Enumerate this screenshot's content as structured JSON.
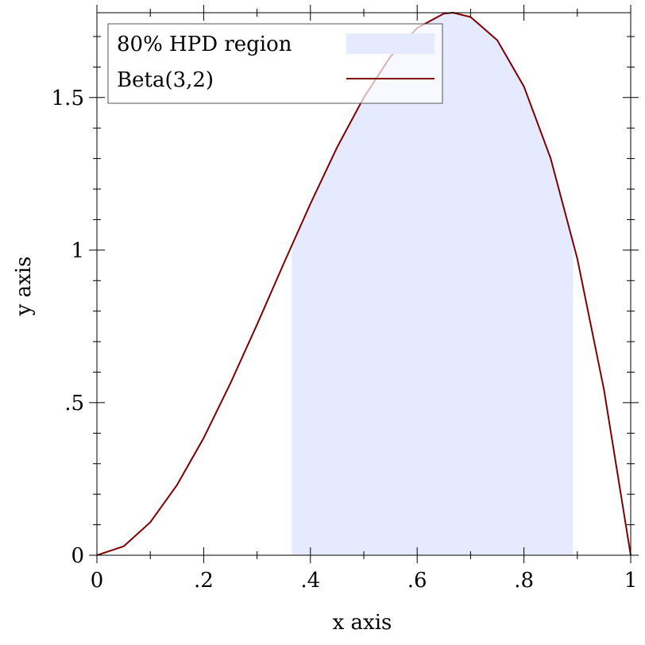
{
  "chart_data": {
    "type": "line",
    "title": "",
    "xlabel": "x axis",
    "ylabel": "y axis",
    "xlim": [
      0,
      1
    ],
    "ylim": [
      0,
      1.778
    ],
    "x_ticks": [
      {
        "value": 0,
        "label": "0"
      },
      {
        "value": 0.2,
        "label": ".2"
      },
      {
        "value": 0.4,
        "label": ".4"
      },
      {
        "value": 0.6,
        "label": ".6"
      },
      {
        "value": 0.8,
        "label": ".8"
      },
      {
        "value": 1,
        "label": "1"
      }
    ],
    "y_ticks": [
      {
        "value": 0,
        "label": "0"
      },
      {
        "value": 0.5,
        "label": ".5"
      },
      {
        "value": 1,
        "label": "1"
      },
      {
        "value": 1.5,
        "label": "1.5"
      }
    ],
    "grid": false,
    "legend_position": "top-left",
    "series": [
      {
        "name": "80% HPD region",
        "kind": "area",
        "color": "#e6eaff",
        "x_range": [
          0.365,
          0.892
        ]
      },
      {
        "name": "Beta(3,2)",
        "kind": "line",
        "color": "#7f0000",
        "x": [
          0,
          0.05,
          0.1,
          0.15,
          0.2,
          0.25,
          0.3,
          0.35,
          0.4,
          0.45,
          0.5,
          0.55,
          0.6,
          0.65,
          0.667,
          0.7,
          0.75,
          0.8,
          0.85,
          0.9,
          0.95,
          1
        ],
        "y": [
          0,
          0.029,
          0.108,
          0.23,
          0.384,
          0.563,
          0.756,
          0.956,
          1.152,
          1.337,
          1.5,
          1.634,
          1.728,
          1.775,
          1.778,
          1.764,
          1.688,
          1.536,
          1.301,
          0.972,
          0.542,
          0
        ]
      }
    ]
  }
}
